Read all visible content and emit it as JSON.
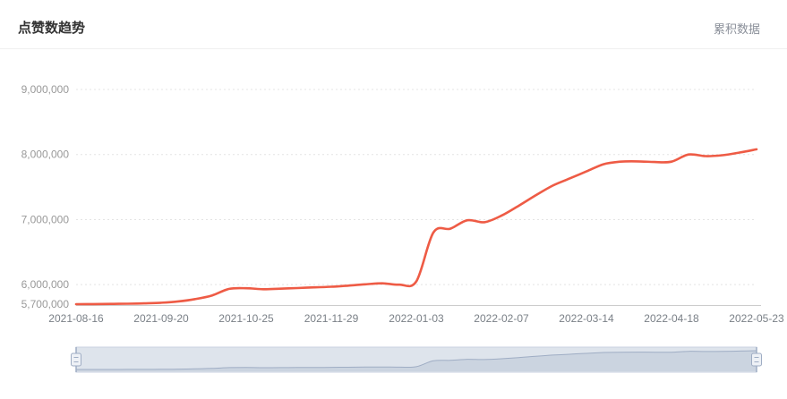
{
  "header": {
    "title": "点赞数趋势",
    "legend_label": "累积数据"
  },
  "chart_data": {
    "type": "line",
    "title": "点赞数趋势",
    "legend": [
      "累积数据"
    ],
    "legend_position": "top-right",
    "line_color": "#ee5b45",
    "grid": true,
    "ylim": [
      5700000,
      9000000
    ],
    "y_tick_labels": [
      "5,700,000",
      "6,000,000",
      "7,000,000",
      "8,000,000",
      "9,000,000"
    ],
    "y_tick_values": [
      5700000,
      6000000,
      7000000,
      8000000,
      9000000
    ],
    "x_tick_labels": [
      "2021-08-16",
      "2021-09-20",
      "2021-10-25",
      "2021-11-29",
      "2022-01-03",
      "2022-02-07",
      "2022-03-14",
      "2022-04-18",
      "2022-05-23"
    ],
    "x": [
      "2021-08-16",
      "2021-08-23",
      "2021-08-30",
      "2021-09-06",
      "2021-09-13",
      "2021-09-20",
      "2021-09-27",
      "2021-10-04",
      "2021-10-11",
      "2021-10-18",
      "2021-10-25",
      "2021-11-01",
      "2021-11-08",
      "2021-11-15",
      "2021-11-22",
      "2021-11-29",
      "2021-12-06",
      "2021-12-13",
      "2021-12-20",
      "2021-12-27",
      "2022-01-03",
      "2022-01-10",
      "2022-01-17",
      "2022-01-24",
      "2022-01-31",
      "2022-02-07",
      "2022-02-14",
      "2022-02-21",
      "2022-02-28",
      "2022-03-07",
      "2022-03-14",
      "2022-03-21",
      "2022-03-28",
      "2022-04-04",
      "2022-04-11",
      "2022-04-18",
      "2022-04-25",
      "2022-05-02",
      "2022-05-09",
      "2022-05-16",
      "2022-05-23"
    ],
    "values": [
      5700000,
      5702000,
      5704000,
      5707000,
      5712000,
      5722000,
      5742000,
      5778000,
      5835000,
      5935000,
      5945000,
      5930000,
      5938000,
      5948000,
      5958000,
      5968000,
      5985000,
      6005000,
      6020000,
      6000000,
      6050000,
      6800000,
      6860000,
      6990000,
      6960000,
      7060000,
      7210000,
      7370000,
      7520000,
      7630000,
      7740000,
      7850000,
      7890000,
      7895000,
      7885000,
      7890000,
      8000000,
      7975000,
      7990000,
      8030000,
      8080000
    ],
    "has_datazoom_slider": true
  },
  "colors": {
    "line": "#ee5b45",
    "grid": "#e4e4e4",
    "axis": "#cccccc",
    "y_label": "#999999",
    "x_label": "#7a8087",
    "slider_fill": "rgba(167,183,204,0.38)",
    "slider_border": "#c9d2e0",
    "slider_shadow_line": "#9fadc4",
    "slider_shadow_area": "rgba(160,174,195,0.30)",
    "handle_fill": "#eef1f6",
    "handle_stroke": "#9fadc4"
  }
}
